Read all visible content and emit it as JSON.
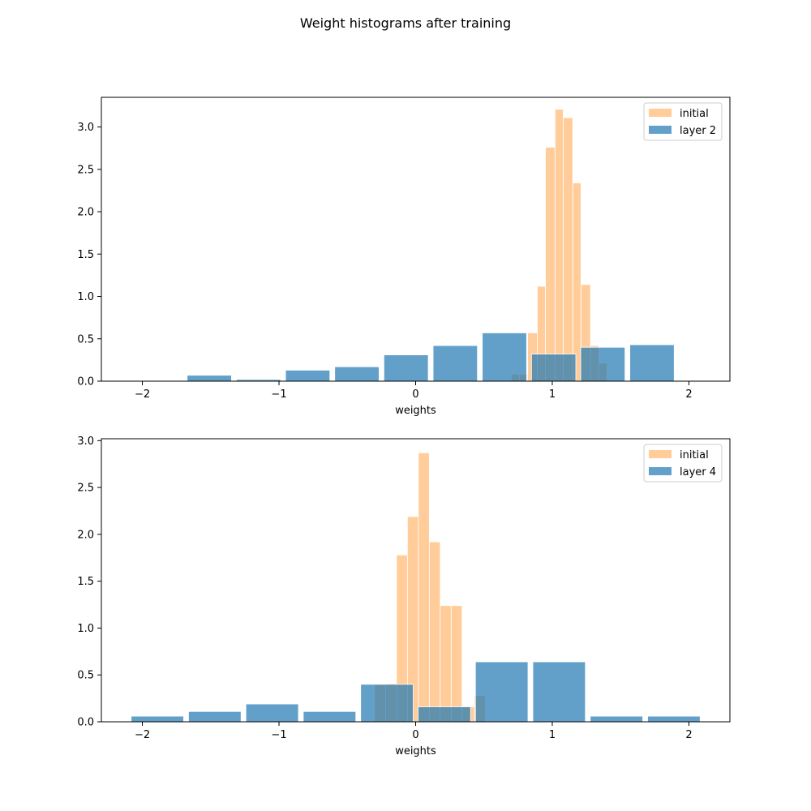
{
  "figure": {
    "title": "Weight histograms after training"
  },
  "colors": {
    "initial": "#ffbb78",
    "trained": "#1f77b4",
    "bar_edge": "#ffffff",
    "axis": "#000000"
  },
  "chart_data": [
    {
      "type": "bar",
      "xlabel": "weights",
      "ylabel": "",
      "xlim": [
        -2.3,
        2.3
      ],
      "ylim": [
        0,
        3.35
      ],
      "xticks": [
        -2,
        -1,
        0,
        1,
        2
      ],
      "xtick_labels": [
        "−2",
        "−1",
        "0",
        "1",
        "2"
      ],
      "yticks": [
        0,
        0.5,
        1.0,
        1.5,
        2.0,
        2.5,
        3.0
      ],
      "ytick_labels": [
        "0.0",
        "0.5",
        "1.0",
        "1.5",
        "2.0",
        "2.5",
        "3.0"
      ],
      "legend": {
        "location": "upper right",
        "entries": [
          "initial",
          "layer 2"
        ]
      },
      "series": [
        {
          "name": "initial",
          "color": "#ffbb78",
          "alpha": 0.75,
          "bins": [
            {
              "x0": 0.7,
              "x1": 0.76,
              "value": 0.08
            },
            {
              "x0": 0.76,
              "x1": 0.82,
              "value": 0.08
            },
            {
              "x0": 0.82,
              "x1": 0.89,
              "value": 0.57
            },
            {
              "x0": 0.89,
              "x1": 0.95,
              "value": 1.12
            },
            {
              "x0": 0.95,
              "x1": 1.02,
              "value": 2.76
            },
            {
              "x0": 1.02,
              "x1": 1.08,
              "value": 3.21
            },
            {
              "x0": 1.08,
              "x1": 1.15,
              "value": 3.11
            },
            {
              "x0": 1.15,
              "x1": 1.21,
              "value": 2.34
            },
            {
              "x0": 1.21,
              "x1": 1.28,
              "value": 1.14
            },
            {
              "x0": 1.28,
              "x1": 1.34,
              "value": 0.42
            },
            {
              "x0": 1.34,
              "x1": 1.4,
              "value": 0.21
            }
          ]
        },
        {
          "name": "layer 2",
          "color": "#1f77b4",
          "alpha": 0.7,
          "bins": [
            {
              "x0": -2.05,
              "x1": -1.69,
              "value": 0.0
            },
            {
              "x0": -1.69,
              "x1": -1.33,
              "value": 0.07
            },
            {
              "x0": -1.33,
              "x1": -0.97,
              "value": 0.02
            },
            {
              "x0": -0.97,
              "x1": -0.61,
              "value": 0.13
            },
            {
              "x0": -0.61,
              "x1": -0.25,
              "value": 0.17
            },
            {
              "x0": -0.25,
              "x1": 0.11,
              "value": 0.31
            },
            {
              "x0": 0.11,
              "x1": 0.47,
              "value": 0.42
            },
            {
              "x0": 0.47,
              "x1": 0.83,
              "value": 0.57
            },
            {
              "x0": 0.83,
              "x1": 1.19,
              "value": 0.32
            },
            {
              "x0": 1.19,
              "x1": 1.55,
              "value": 0.4
            },
            {
              "x0": 1.55,
              "x1": 1.91,
              "value": 0.43
            }
          ]
        }
      ]
    },
    {
      "type": "bar",
      "xlabel": "weights",
      "ylabel": "",
      "xlim": [
        -2.3,
        2.3
      ],
      "ylim": [
        0,
        3.02
      ],
      "xticks": [
        -2,
        -1,
        0,
        1,
        2
      ],
      "xtick_labels": [
        "−2",
        "−1",
        "0",
        "1",
        "2"
      ],
      "yticks": [
        0,
        0.5,
        1.0,
        1.5,
        2.0,
        2.5,
        3.0
      ],
      "ytick_labels": [
        "0.0",
        "0.5",
        "1.0",
        "1.5",
        "2.0",
        "2.5",
        "3.0"
      ],
      "legend": {
        "location": "upper right",
        "entries": [
          "initial",
          "layer 4"
        ]
      },
      "series": [
        {
          "name": "initial",
          "color": "#ffbb78",
          "alpha": 0.75,
          "bins": [
            {
              "x0": -0.3,
              "x1": -0.22,
              "value": 0.4
            },
            {
              "x0": -0.22,
              "x1": -0.14,
              "value": 0.41
            },
            {
              "x0": -0.14,
              "x1": -0.06,
              "value": 1.78
            },
            {
              "x0": -0.06,
              "x1": 0.02,
              "value": 2.19
            },
            {
              "x0": 0.02,
              "x1": 0.1,
              "value": 2.87
            },
            {
              "x0": 0.1,
              "x1": 0.18,
              "value": 1.92
            },
            {
              "x0": 0.18,
              "x1": 0.26,
              "value": 1.24
            },
            {
              "x0": 0.26,
              "x1": 0.34,
              "value": 1.24
            },
            {
              "x0": 0.34,
              "x1": 0.43,
              "value": 0.16
            },
            {
              "x0": 0.43,
              "x1": 0.51,
              "value": 0.28
            }
          ]
        },
        {
          "name": "layer 4",
          "color": "#1f77b4",
          "alpha": 0.7,
          "bins": [
            {
              "x0": -2.1,
              "x1": -1.68,
              "value": 0.06
            },
            {
              "x0": -1.68,
              "x1": -1.26,
              "value": 0.11
            },
            {
              "x0": -1.26,
              "x1": -0.84,
              "value": 0.19
            },
            {
              "x0": -0.84,
              "x1": -0.42,
              "value": 0.11
            },
            {
              "x0": -0.42,
              "x1": 0.0,
              "value": 0.4
            },
            {
              "x0": 0.0,
              "x1": 0.42,
              "value": 0.16
            },
            {
              "x0": 0.42,
              "x1": 0.84,
              "value": 0.64
            },
            {
              "x0": 0.84,
              "x1": 1.26,
              "value": 0.64
            },
            {
              "x0": 1.26,
              "x1": 1.68,
              "value": 0.06
            },
            {
              "x0": 1.68,
              "x1": 2.1,
              "value": 0.06
            }
          ]
        }
      ]
    }
  ]
}
